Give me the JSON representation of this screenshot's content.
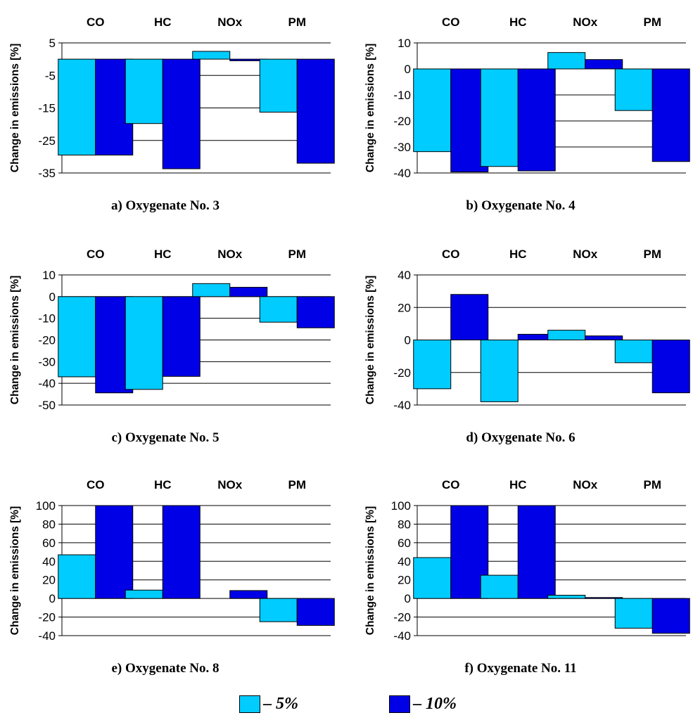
{
  "colors": {
    "series_light": "#00CCFF",
    "series_dark": "#0000E6",
    "grid": "#000000",
    "background": "#FFFFFF"
  },
  "legend": {
    "items": [
      {
        "dash": "–",
        "number": "5%",
        "color": "#00CCFF"
      },
      {
        "dash": "–",
        "number": "10%",
        "color": "#0000E6"
      }
    ]
  },
  "chart_data": [
    {
      "type": "bar",
      "panel_label": "a) Oxygenate No. 3",
      "categories": [
        "CO",
        "HC",
        "NOx",
        "PM"
      ],
      "ylabel": "Change in emissions [%]",
      "ylim": [
        -35,
        5
      ],
      "yticks": [
        5,
        -5,
        -15,
        -25,
        -35
      ],
      "grid": true,
      "series": [
        {
          "values": [
            -29.5,
            -19.8,
            2.4,
            -16.3
          ],
          "color": "#00CCFF"
        },
        {
          "values": [
            -29.5,
            -33.7,
            -0.5,
            -32.0
          ],
          "color": "#0000E6"
        }
      ]
    },
    {
      "type": "bar",
      "panel_label": "b) Oxygenate No. 4",
      "categories": [
        "CO",
        "HC",
        "NOx",
        "PM"
      ],
      "ylabel": "Change in emissions [%]",
      "ylim": [
        -40,
        10
      ],
      "yticks": [
        10,
        0,
        -10,
        -20,
        -30,
        -40
      ],
      "grid": true,
      "series": [
        {
          "values": [
            -31.8,
            -37.5,
            6.3,
            -16.0
          ],
          "color": "#00CCFF"
        },
        {
          "values": [
            -39.6,
            -39.2,
            3.6,
            -35.6
          ],
          "color": "#0000E6"
        }
      ]
    },
    {
      "type": "bar",
      "panel_label": "c) Oxygenate No. 5",
      "categories": [
        "CO",
        "HC",
        "NOx",
        "PM"
      ],
      "ylabel": "Change in emissions [%]",
      "ylim": [
        -50,
        10
      ],
      "yticks": [
        10,
        0,
        -10,
        -20,
        -30,
        -40,
        -50
      ],
      "grid": true,
      "series": [
        {
          "values": [
            -37.0,
            -42.8,
            6.0,
            -11.8
          ],
          "color": "#00CCFF"
        },
        {
          "values": [
            -44.4,
            -36.8,
            4.3,
            -14.4
          ],
          "color": "#0000E6"
        }
      ]
    },
    {
      "type": "bar",
      "panel_label": "d) Oxygenate No. 6",
      "categories": [
        "CO",
        "HC",
        "NOx",
        "PM"
      ],
      "ylabel": "Change in emissions [%]",
      "ylim": [
        -40,
        40
      ],
      "yticks": [
        40,
        20,
        0,
        -20,
        -40
      ],
      "grid": true,
      "series": [
        {
          "values": [
            -30.0,
            -38.0,
            6.0,
            -14.0
          ],
          "color": "#00CCFF"
        },
        {
          "values": [
            28.0,
            3.5,
            2.5,
            -32.5
          ],
          "color": "#0000E6"
        }
      ]
    },
    {
      "type": "bar",
      "panel_label": "e) Oxygenate No. 8",
      "categories": [
        "CO",
        "HC",
        "NOx",
        "PM"
      ],
      "ylabel": "Change in emissions [%]",
      "ylim": [
        -40,
        100
      ],
      "yticks": [
        100,
        80,
        60,
        40,
        20,
        0,
        -20,
        -40
      ],
      "grid": true,
      "series": [
        {
          "values": [
            47.0,
            9.0,
            0.0,
            -25.0
          ],
          "color": "#00CCFF"
        },
        {
          "values": [
            102.0,
            102.0,
            8.5,
            -29.0
          ],
          "color": "#0000E6"
        }
      ]
    },
    {
      "type": "bar",
      "panel_label": "f) Oxygenate No. 11",
      "categories": [
        "CO",
        "HC",
        "NOx",
        "PM"
      ],
      "ylabel": "Change in emissions [%]",
      "ylim": [
        -40,
        100
      ],
      "yticks": [
        100,
        80,
        60,
        40,
        20,
        0,
        -20,
        -40
      ],
      "grid": true,
      "series": [
        {
          "values": [
            44.0,
            25.0,
            3.5,
            -32.0
          ],
          "color": "#00CCFF"
        },
        {
          "values": [
            102.0,
            102.0,
            1.0,
            -37.5
          ],
          "color": "#0000E6"
        }
      ]
    }
  ]
}
